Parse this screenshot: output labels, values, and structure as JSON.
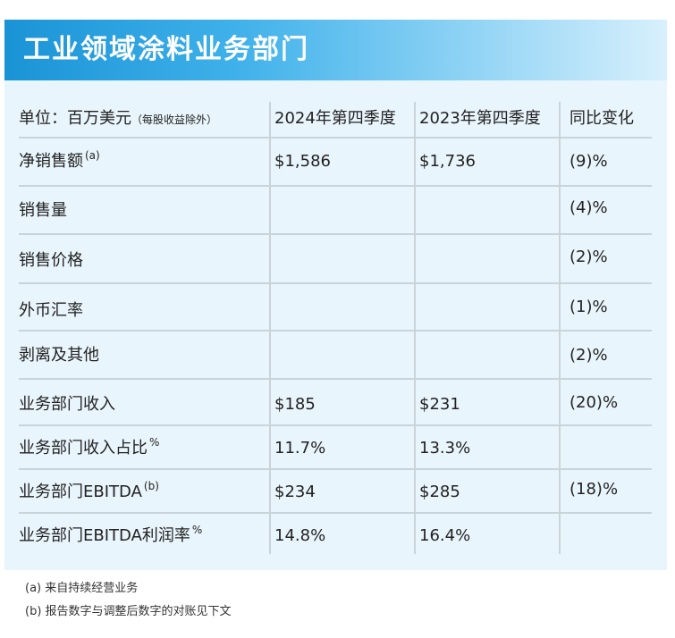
{
  "title": "工业领域涂料业务部门",
  "table": {
    "header": {
      "label": "单位：百万美元",
      "label_note": "（每股收益除外）",
      "col1": "2024年第四季度",
      "col2": "2023年第四季度",
      "col3": "同比变化"
    },
    "rows": [
      {
        "label": "净销售额",
        "sup": "(a)",
        "v1": "$1,586",
        "v2": "$1,736",
        "v3": "(9)%"
      },
      {
        "label": "销售量",
        "sup": "",
        "v1": "",
        "v2": "",
        "v3": "(4)%"
      },
      {
        "label": "销售价格",
        "sup": "",
        "v1": "",
        "v2": "",
        "v3": "(2)%"
      },
      {
        "label": "外币汇率",
        "sup": "",
        "v1": "",
        "v2": "",
        "v3": "(1)%"
      },
      {
        "label": "剥离及其他",
        "sup": "",
        "v1": "",
        "v2": "",
        "v3": "(2)%"
      },
      {
        "label": "业务部门收入",
        "sup": "",
        "v1": "$185",
        "v2": "$231",
        "v3": "(20)%"
      },
      {
        "label": "业务部门收入占比",
        "sup": "%",
        "v1": "11.7%",
        "v2": "13.3%",
        "v3": ""
      },
      {
        "label": "业务部门EBITDA",
        "sup": "(b)",
        "v1": "$234",
        "v2": "$285",
        "v3": "(18)%"
      },
      {
        "label": "业务部门EBITDA利润率",
        "sup": "%",
        "v1": "14.8%",
        "v2": "16.4%",
        "v3": ""
      }
    ]
  },
  "footnotes": {
    "a": "(a) 来自持续经营业务",
    "b": "(b) 报告数字与调整后数字的对账见下文"
  },
  "colors": {
    "banner_start": "#1a93d6",
    "banner_end": "#d8f0fc",
    "panel_bg": "#e9f5fc",
    "rule": "#c9d3da"
  }
}
